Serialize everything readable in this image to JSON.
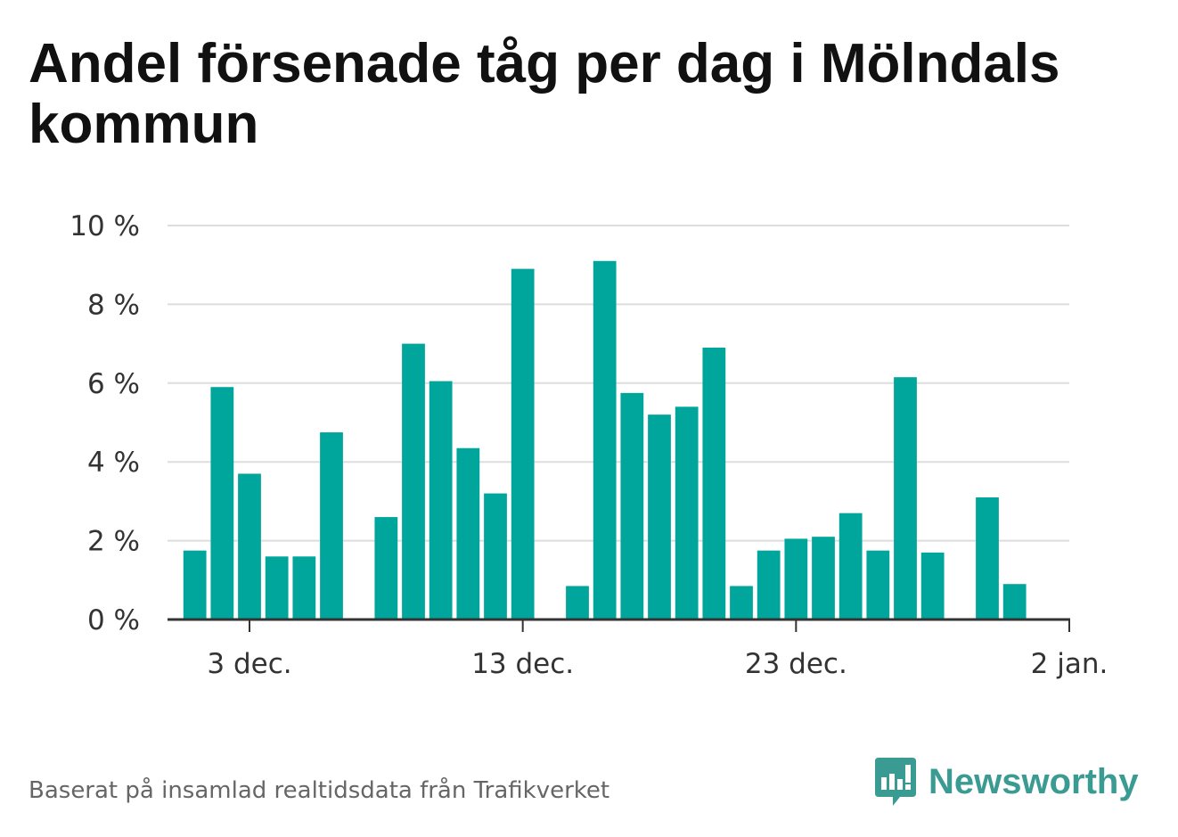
{
  "title": "Andel försenade tåg per dag i Mölndals kommun",
  "footer": "Baserat på insamlad realtidsdata från Trafikverket",
  "brand": {
    "name": "Newsworthy",
    "icon": "newsworthy-logo-icon",
    "color": "#3a9b92"
  },
  "colors": {
    "bar": "#00a59b",
    "grid": "#dddddd",
    "axis": "#333333"
  },
  "chart_data": {
    "type": "bar",
    "x_unit": "day",
    "x_start": "2019-11-30",
    "x_end": "2020-01-02",
    "series": [
      {
        "values": [
          {
            "date": "2019-12-01",
            "value": 1.75
          },
          {
            "date": "2019-12-02",
            "value": 5.9
          },
          {
            "date": "2019-12-03",
            "value": 3.7
          },
          {
            "date": "2019-12-04",
            "value": 1.6
          },
          {
            "date": "2019-12-05",
            "value": 1.6
          },
          {
            "date": "2019-12-06",
            "value": 4.75
          },
          {
            "date": "2019-12-07",
            "value": 0
          },
          {
            "date": "2019-12-08",
            "value": 2.6
          },
          {
            "date": "2019-12-09",
            "value": 7.0
          },
          {
            "date": "2019-12-10",
            "value": 6.05
          },
          {
            "date": "2019-12-11",
            "value": 4.35
          },
          {
            "date": "2019-12-12",
            "value": 3.2
          },
          {
            "date": "2019-12-13",
            "value": 8.9
          },
          {
            "date": "2019-12-14",
            "value": 0
          },
          {
            "date": "2019-12-15",
            "value": 0.85
          },
          {
            "date": "2019-12-16",
            "value": 9.1
          },
          {
            "date": "2019-12-17",
            "value": 5.75
          },
          {
            "date": "2019-12-18",
            "value": 5.2
          },
          {
            "date": "2019-12-19",
            "value": 5.4
          },
          {
            "date": "2019-12-20",
            "value": 6.9
          },
          {
            "date": "2019-12-21",
            "value": 0.85
          },
          {
            "date": "2019-12-22",
            "value": 1.75
          },
          {
            "date": "2019-12-23",
            "value": 2.05
          },
          {
            "date": "2019-12-24",
            "value": 2.1
          },
          {
            "date": "2019-12-25",
            "value": 2.7
          },
          {
            "date": "2019-12-26",
            "value": 1.75
          },
          {
            "date": "2019-12-27",
            "value": 6.15
          },
          {
            "date": "2019-12-28",
            "value": 1.7
          },
          {
            "date": "2019-12-29",
            "value": 0
          },
          {
            "date": "2019-12-30",
            "value": 3.1
          },
          {
            "date": "2019-12-31",
            "value": 0.9
          }
        ]
      }
    ],
    "ylim": [
      0,
      10
    ],
    "y_ticks": [
      {
        "value": 0,
        "label": "0 %"
      },
      {
        "value": 2,
        "label": "2 %"
      },
      {
        "value": 4,
        "label": "4 %"
      },
      {
        "value": 6,
        "label": "6 %"
      },
      {
        "value": 8,
        "label": "8 %"
      },
      {
        "value": 10,
        "label": "10 %"
      }
    ],
    "x_ticks": [
      {
        "date": "2019-12-03",
        "label": "3 dec."
      },
      {
        "date": "2019-12-13",
        "label": "13 dec."
      },
      {
        "date": "2019-12-23",
        "label": "23 dec."
      },
      {
        "date": "2020-01-02",
        "label": "2 jan."
      }
    ],
    "grid": true,
    "legend": "none"
  }
}
